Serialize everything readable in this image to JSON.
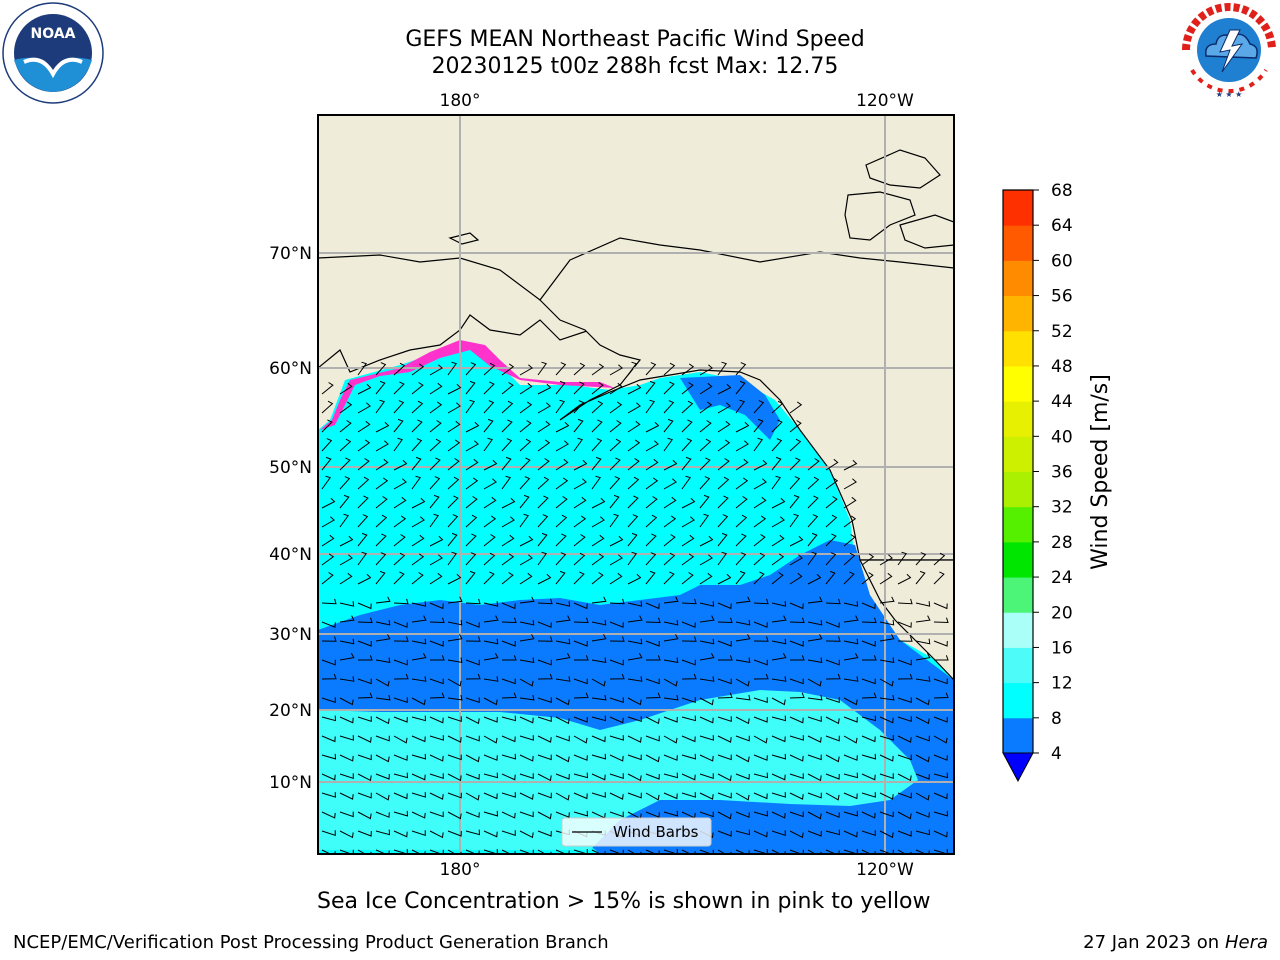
{
  "title_line1": "GEFS MEAN Northeast Pacific Wind Speed",
  "title_line2": "20230125 t00z 288h fcst   Max: 12.75",
  "map": {
    "top_lon_labels": [
      "180°",
      "120°W"
    ],
    "bottom_lon_labels": [
      "180°",
      "120°W"
    ],
    "lat_labels": [
      "70°N",
      "60°N",
      "50°N",
      "40°N",
      "30°N",
      "20°N",
      "10°N"
    ],
    "legend_label": "Wind Barbs",
    "colors": {
      "land": "#efedda",
      "wind_4_8": "#0a7bff",
      "wind_8_12": "#00ffff",
      "wind_12_16": "#3ffdf9",
      "sea_ice": "#ff33cc",
      "grid": "#b0b0b0"
    }
  },
  "colorbar": {
    "label": "Wind Speed [m/s]",
    "ticks": [
      "4",
      "8",
      "12",
      "16",
      "20",
      "24",
      "28",
      "32",
      "36",
      "40",
      "44",
      "48",
      "52",
      "56",
      "60",
      "64",
      "68"
    ],
    "colors": [
      "#0a7bff",
      "#00ffff",
      "#4dfcf9",
      "#aafff8",
      "#4cf578",
      "#00e600",
      "#55f000",
      "#aaf000",
      "#ccf000",
      "#e6f000",
      "#ffff00",
      "#ffe000",
      "#ffb400",
      "#ff8c00",
      "#ff5a00",
      "#ff3000",
      "#ff0000"
    ],
    "extend_color": "#0000ff"
  },
  "note": "Sea Ice Concentration > 15% is shown in pink to yellow",
  "footer": {
    "left": "NCEP/EMC/Verification Post Processing Product Generation Branch",
    "right_prefix": "27 Jan 2023 on ",
    "right_host": "Hera"
  },
  "logos": {
    "noaa_text": "NOAA",
    "nws_text": "NATIONAL WEATHER SERVICE"
  }
}
